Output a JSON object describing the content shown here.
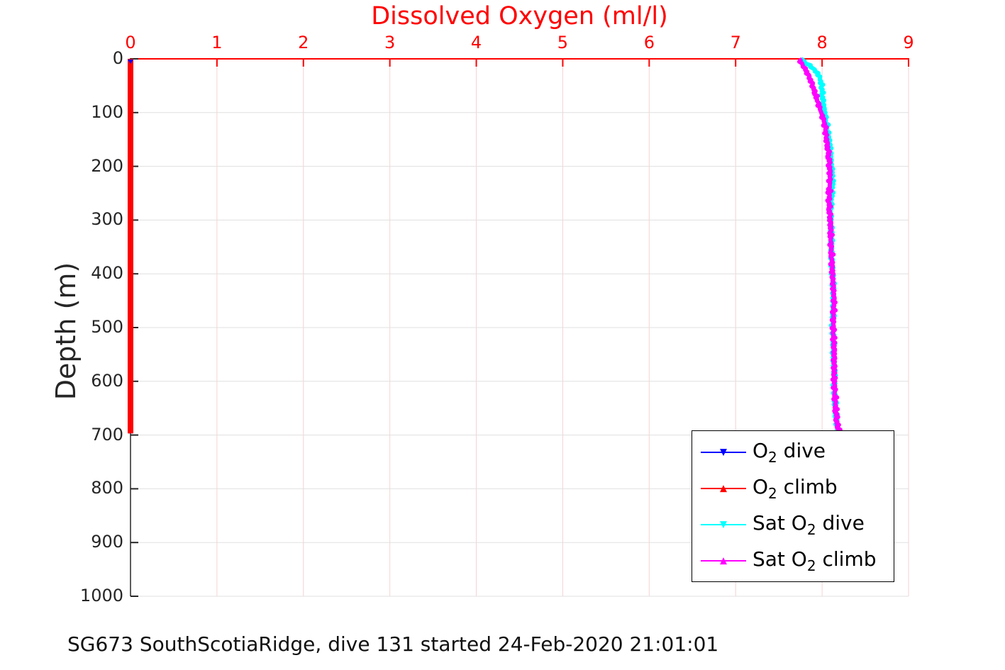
{
  "figure": {
    "caption": "SG673 SouthScotiaRidge, dive 131 started 24-Feb-2020 21:01:01"
  },
  "colors": {
    "accent_red": "#ff0000",
    "axis_dark": "#262626",
    "x_grid": "#f6d2d2",
    "y_grid": "#e0e0e0",
    "background": "#ffffff",
    "legend_border": "#000000"
  },
  "chart_data": {
    "type": "line",
    "title": "Dissolved Oxygen (ml/l)",
    "ylabel": "Depth (m)",
    "x_axis_location": "top",
    "y_inverted": true,
    "xlim": [
      0,
      9
    ],
    "ylim": [
      0,
      1000
    ],
    "xticks": [
      0,
      1,
      2,
      3,
      4,
      5,
      6,
      7,
      8,
      9
    ],
    "yticks": [
      0,
      100,
      200,
      300,
      400,
      500,
      600,
      700,
      800,
      900,
      1000
    ],
    "grid": true,
    "legend_position": "lower-right-inside",
    "series": [
      {
        "name": "O2 dive",
        "legend": {
          "pre": "O",
          "sub": "2",
          "post": " dive"
        },
        "color": "#0000ff",
        "marker": "triangle-down",
        "points": [
          [
            0,
            0.0
          ],
          [
            697,
            0.0
          ]
        ]
      },
      {
        "name": "O2 climb",
        "legend": {
          "pre": "O",
          "sub": "2",
          "post": " climb"
        },
        "color": "#ff0000",
        "marker": "triangle-up",
        "points": [
          [
            0,
            0.0
          ],
          [
            697,
            0.0
          ]
        ]
      },
      {
        "name": "Sat O2 dive",
        "legend": {
          "pre": "Sat O",
          "sub": "2",
          "post": " dive"
        },
        "color": "#00ffff",
        "marker": "triangle-down",
        "points": [
          [
            0,
            7.76
          ],
          [
            5,
            7.79
          ],
          [
            12,
            7.85
          ],
          [
            20,
            7.91
          ],
          [
            30,
            7.96
          ],
          [
            45,
            7.99
          ],
          [
            60,
            8.0
          ],
          [
            80,
            8.01
          ],
          [
            100,
            8.03
          ],
          [
            120,
            8.05
          ],
          [
            140,
            8.07
          ],
          [
            160,
            8.09
          ],
          [
            185,
            8.1
          ],
          [
            205,
            8.11
          ],
          [
            230,
            8.12
          ],
          [
            255,
            8.11
          ],
          [
            280,
            8.1
          ],
          [
            305,
            8.1
          ],
          [
            335,
            8.11
          ],
          [
            365,
            8.11
          ],
          [
            400,
            8.12
          ],
          [
            430,
            8.13
          ],
          [
            460,
            8.13
          ],
          [
            490,
            8.12
          ],
          [
            520,
            8.13
          ],
          [
            550,
            8.13
          ],
          [
            580,
            8.14
          ],
          [
            610,
            8.14
          ],
          [
            640,
            8.15
          ],
          [
            662,
            8.16
          ],
          [
            680,
            8.17
          ],
          [
            693,
            8.19
          ]
        ]
      },
      {
        "name": "Sat O2 climb",
        "legend": {
          "pre": "Sat O",
          "sub": "2",
          "post": " climb"
        },
        "color": "#ff00ff",
        "marker": "triangle-up",
        "points": [
          [
            0,
            7.74
          ],
          [
            8,
            7.76
          ],
          [
            18,
            7.8
          ],
          [
            30,
            7.84
          ],
          [
            45,
            7.88
          ],
          [
            60,
            7.91
          ],
          [
            75,
            7.94
          ],
          [
            90,
            7.97
          ],
          [
            100,
            7.99
          ],
          [
            115,
            8.02
          ],
          [
            130,
            8.04
          ],
          [
            150,
            8.05
          ],
          [
            170,
            8.07
          ],
          [
            190,
            8.08
          ],
          [
            210,
            8.09
          ],
          [
            230,
            8.09
          ],
          [
            252,
            8.08
          ],
          [
            272,
            8.08
          ],
          [
            292,
            8.09
          ],
          [
            312,
            8.1
          ],
          [
            340,
            8.1
          ],
          [
            370,
            8.11
          ],
          [
            400,
            8.12
          ],
          [
            428,
            8.13
          ],
          [
            450,
            8.14
          ],
          [
            480,
            8.13
          ],
          [
            510,
            8.13
          ],
          [
            540,
            8.14
          ],
          [
            572,
            8.14
          ],
          [
            600,
            8.14
          ],
          [
            630,
            8.15
          ],
          [
            655,
            8.16
          ],
          [
            675,
            8.17
          ],
          [
            690,
            8.19
          ],
          [
            696,
            8.2
          ]
        ]
      }
    ]
  }
}
